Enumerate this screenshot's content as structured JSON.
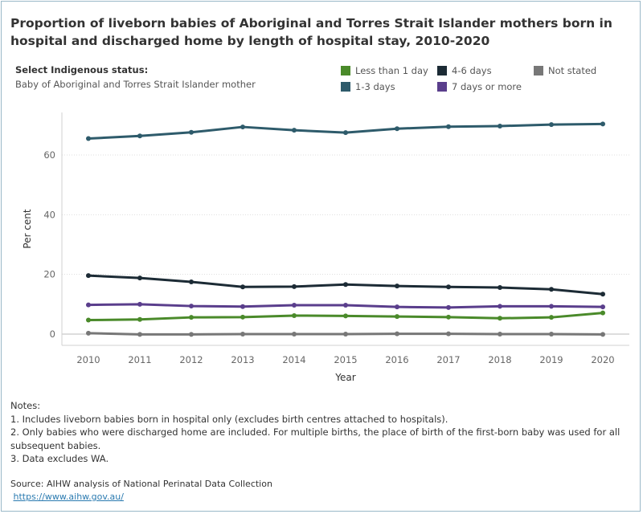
{
  "title": "Proportion of liveborn babies of Aboriginal and Torres Strait Islander mothers born in hospital and discharged home by length of hospital stay, 2010-2020",
  "filter": {
    "label": "Select Indigenous status:",
    "value": "Baby of Aboriginal and Torres Strait Islander mother"
  },
  "notes": {
    "heading": "Notes:",
    "items": [
      "1. Includes liveborn babies born in hospital only (excludes birth centres attached to hospitals).",
      "2. Only babies who were discharged home are included. For multiple births, the place of birth of the first-born baby was used for all subsequent babies.",
      "3. Data excludes WA."
    ]
  },
  "source": {
    "text": "Source: AIHW analysis of National Perinatal Data Collection",
    "link": "https://www.aihw.gov.au/"
  },
  "chart_data": {
    "type": "line",
    "xlabel": "Year",
    "ylabel": "Per cent",
    "x": [
      "2010",
      "2011",
      "2012",
      "2013",
      "2014",
      "2015",
      "2016",
      "2017",
      "2018",
      "2019",
      "2020"
    ],
    "ylim": [
      -3,
      74
    ],
    "yticks": [
      0,
      20,
      40,
      60
    ],
    "grid": true,
    "legend_position": "top-right",
    "series": [
      {
        "name": "Less than 1 day",
        "color": "#4a8a2a",
        "values": [
          4.7,
          4.9,
          5.6,
          5.7,
          6.2,
          6.1,
          5.9,
          5.7,
          5.3,
          5.6,
          7.1
        ]
      },
      {
        "name": "1-3 days",
        "color": "#2e5b6b",
        "values": [
          65.5,
          66.4,
          67.6,
          69.4,
          68.3,
          67.5,
          68.8,
          69.5,
          69.7,
          70.2,
          70.4
        ]
      },
      {
        "name": "4-6 days",
        "color": "#1c2b35",
        "values": [
          19.6,
          18.8,
          17.5,
          15.8,
          15.9,
          16.6,
          16.1,
          15.8,
          15.6,
          15.0,
          13.4
        ]
      },
      {
        "name": "7 days or more",
        "color": "#5a3e8c",
        "values": [
          9.8,
          10.0,
          9.4,
          9.2,
          9.7,
          9.7,
          9.1,
          8.9,
          9.3,
          9.3,
          9.1
        ]
      },
      {
        "name": "Not stated",
        "color": "#777777",
        "values": [
          0.3,
          -0.1,
          -0.1,
          0.0,
          0.0,
          0.0,
          0.1,
          0.1,
          0.0,
          0.0,
          -0.1
        ]
      }
    ]
  }
}
